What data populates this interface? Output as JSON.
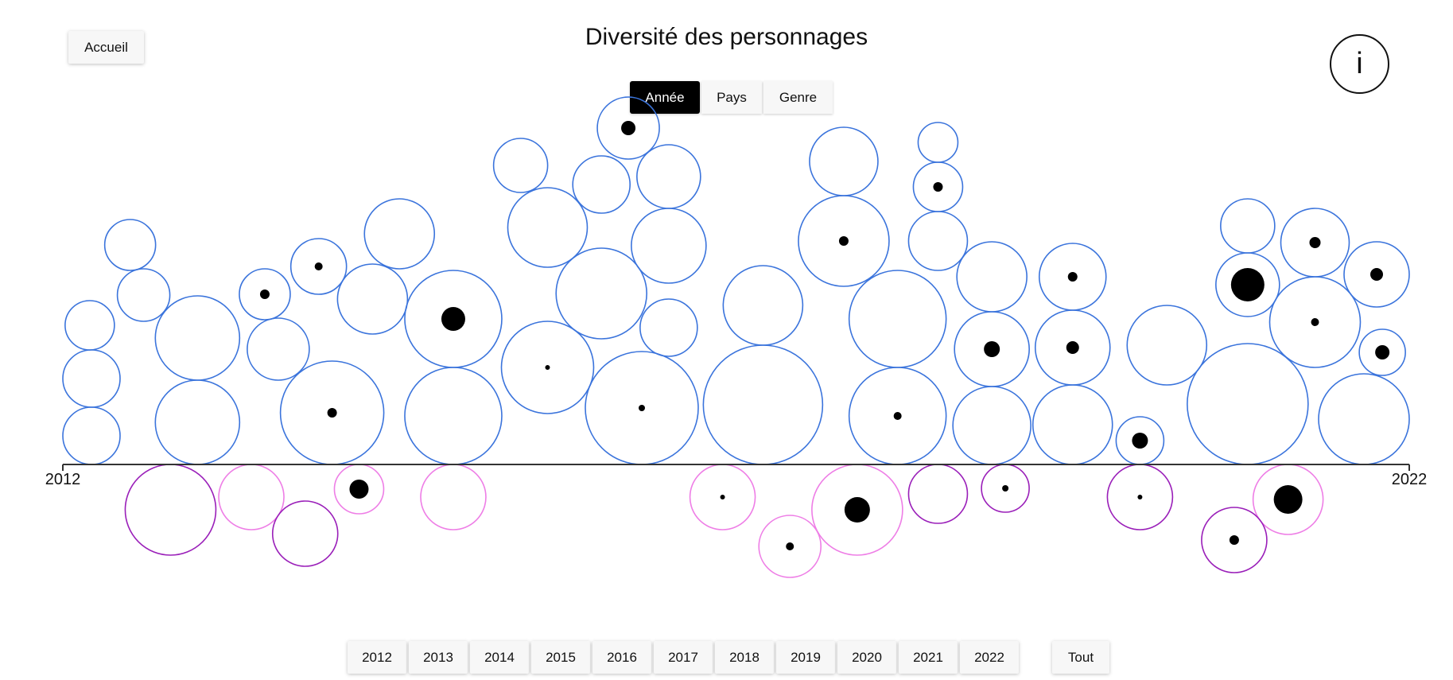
{
  "nav": {
    "home_label": "Accueil",
    "info_label": "i"
  },
  "page_title": "Diversité des personnages",
  "view_tabs": [
    {
      "label": "Année",
      "active": true
    },
    {
      "label": "Pays",
      "active": false
    },
    {
      "label": "Genre",
      "active": false
    }
  ],
  "year_filters": [
    "2012",
    "2013",
    "2014",
    "2015",
    "2016",
    "2017",
    "2018",
    "2019",
    "2020",
    "2021",
    "2022"
  ],
  "all_filter_label": "Tout",
  "colors": {
    "above": "#3b74dc",
    "below_pink": "#ee7ee6",
    "below_purple": "#9a1fb9",
    "dot": "#000000"
  },
  "chart_data": {
    "type": "bubble",
    "x_range": [
      2012,
      2022
    ],
    "axis_labels": {
      "start": "2012",
      "end": "2022"
    },
    "bubbles_above": [
      {
        "x": 2012.2,
        "r": 36,
        "dot": 0
      },
      {
        "x": 2012.2,
        "r": 36,
        "dot": 0
      },
      {
        "x": 2012.2,
        "r": 31,
        "dot": 0
      },
      {
        "x": 2012.5,
        "r": 32,
        "dot": 0
      },
      {
        "x": 2012.6,
        "r": 33,
        "dot": 0
      },
      {
        "x": 2013.0,
        "r": 53,
        "dot": 0
      },
      {
        "x": 2013.0,
        "r": 53,
        "dot": 0
      },
      {
        "x": 2013.5,
        "r": 32,
        "dot": 6
      },
      {
        "x": 2013.6,
        "r": 39,
        "dot": 0
      },
      {
        "x": 2014.0,
        "r": 65,
        "dot": 6
      },
      {
        "x": 2013.9,
        "r": 35,
        "dot": 5
      },
      {
        "x": 2014.3,
        "r": 44,
        "dot": 0
      },
      {
        "x": 2014.5,
        "r": 44,
        "dot": 0
      },
      {
        "x": 2014.9,
        "r": 61,
        "dot": 0
      },
      {
        "x": 2014.9,
        "r": 61,
        "dot": 15
      },
      {
        "x": 2015.4,
        "r": 34,
        "dot": 0
      },
      {
        "x": 2015.6,
        "r": 58,
        "dot": 3
      },
      {
        "x": 2015.6,
        "r": 50,
        "dot": 0
      },
      {
        "x": 2016.0,
        "r": 36,
        "dot": 0
      },
      {
        "x": 2016.2,
        "r": 39,
        "dot": 9
      },
      {
        "x": 2016.0,
        "r": 57,
        "dot": 0
      },
      {
        "x": 2016.3,
        "r": 71,
        "dot": 4
      },
      {
        "x": 2016.5,
        "r": 36,
        "dot": 0
      },
      {
        "x": 2016.5,
        "r": 40,
        "dot": 0
      },
      {
        "x": 2016.5,
        "r": 47,
        "dot": 0
      },
      {
        "x": 2017.2,
        "r": 50,
        "dot": 0
      },
      {
        "x": 2017.2,
        "r": 75,
        "dot": 0
      },
      {
        "x": 2017.8,
        "r": 57,
        "dot": 6
      },
      {
        "x": 2017.8,
        "r": 43,
        "dot": 0
      },
      {
        "x": 2018.2,
        "r": 61,
        "dot": 5
      },
      {
        "x": 2018.2,
        "r": 61,
        "dot": 0
      },
      {
        "x": 2018.5,
        "r": 25,
        "dot": 0
      },
      {
        "x": 2018.5,
        "r": 31,
        "dot": 6
      },
      {
        "x": 2018.5,
        "r": 37,
        "dot": 0
      },
      {
        "x": 2018.9,
        "r": 49,
        "dot": 0
      },
      {
        "x": 2018.9,
        "r": 47,
        "dot": 10
      },
      {
        "x": 2018.9,
        "r": 44,
        "dot": 0
      },
      {
        "x": 2019.5,
        "r": 42,
        "dot": 6
      },
      {
        "x": 2019.5,
        "r": 50,
        "dot": 0
      },
      {
        "x": 2019.5,
        "r": 47,
        "dot": 8
      },
      {
        "x": 2020.0,
        "r": 30,
        "dot": 10
      },
      {
        "x": 2020.2,
        "r": 50,
        "dot": 0
      },
      {
        "x": 2020.8,
        "r": 76,
        "dot": 0
      },
      {
        "x": 2020.8,
        "r": 40,
        "dot": 21
      },
      {
        "x": 2020.8,
        "r": 34,
        "dot": 0
      },
      {
        "x": 2021.3,
        "r": 43,
        "dot": 7
      },
      {
        "x": 2021.3,
        "r": 57,
        "dot": 5
      },
      {
        "x": 2021.8,
        "r": 29,
        "dot": 9
      },
      {
        "x": 2021.8,
        "r": 41,
        "dot": 8
      },
      {
        "x": 2021.8,
        "r": 57,
        "dot": 0
      }
    ],
    "bubbles_below": [
      {
        "x": 2012.8,
        "r": 57,
        "dot": 0,
        "color": "purple"
      },
      {
        "x": 2013.4,
        "r": 41,
        "dot": 0,
        "color": "pink"
      },
      {
        "x": 2013.8,
        "r": 41,
        "dot": 0,
        "color": "purple"
      },
      {
        "x": 2014.2,
        "r": 31,
        "dot": 12,
        "color": "pink"
      },
      {
        "x": 2014.9,
        "r": 41,
        "dot": 0,
        "color": "pink"
      },
      {
        "x": 2016.9,
        "r": 41,
        "dot": 3,
        "color": "pink"
      },
      {
        "x": 2017.4,
        "r": 39,
        "dot": 5,
        "color": "pink"
      },
      {
        "x": 2017.9,
        "r": 57,
        "dot": 16,
        "color": "pink"
      },
      {
        "x": 2018.5,
        "r": 37,
        "dot": 0,
        "color": "purple"
      },
      {
        "x": 2019.0,
        "r": 30,
        "dot": 4,
        "color": "purple"
      },
      {
        "x": 2020.0,
        "r": 41,
        "dot": 3,
        "color": "purple"
      },
      {
        "x": 2020.7,
        "r": 41,
        "dot": 6,
        "color": "purple"
      },
      {
        "x": 2021.1,
        "r": 44,
        "dot": 18,
        "color": "pink"
      }
    ]
  }
}
